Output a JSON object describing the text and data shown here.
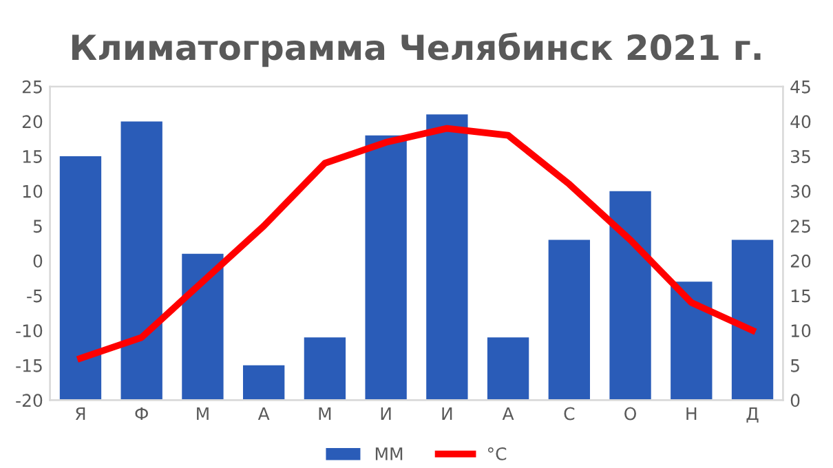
{
  "chart_data": {
    "type": "bar",
    "title": "Климатограмма Челябинск 2021 г.",
    "categories": [
      "Я",
      "Ф",
      "М",
      "А",
      "М",
      "И",
      "И",
      "А",
      "С",
      "О",
      "Н",
      "Д"
    ],
    "series": [
      {
        "name": "ММ",
        "axis": "y2",
        "color": "#2a5cb8",
        "values": [
          35,
          40,
          21,
          5,
          9,
          38,
          41,
          9,
          23,
          30,
          17,
          23
        ]
      },
      {
        "name": "°C",
        "type": "line",
        "axis": "y",
        "color": "#ff0000",
        "values": [
          -14,
          -11,
          -3,
          5,
          14,
          17,
          19,
          18,
          11,
          3,
          -6,
          -10
        ]
      }
    ],
    "ylim": [
      -20,
      25
    ],
    "yticks": [
      -20,
      -15,
      -10,
      -5,
      0,
      5,
      10,
      15,
      20,
      25
    ],
    "y2lim": [
      0,
      45
    ],
    "y2ticks": [
      0,
      5,
      10,
      15,
      20,
      25,
      30,
      35,
      40,
      45
    ],
    "grid": false,
    "legend": "bottom",
    "marker": "none",
    "line_style": "solid"
  }
}
